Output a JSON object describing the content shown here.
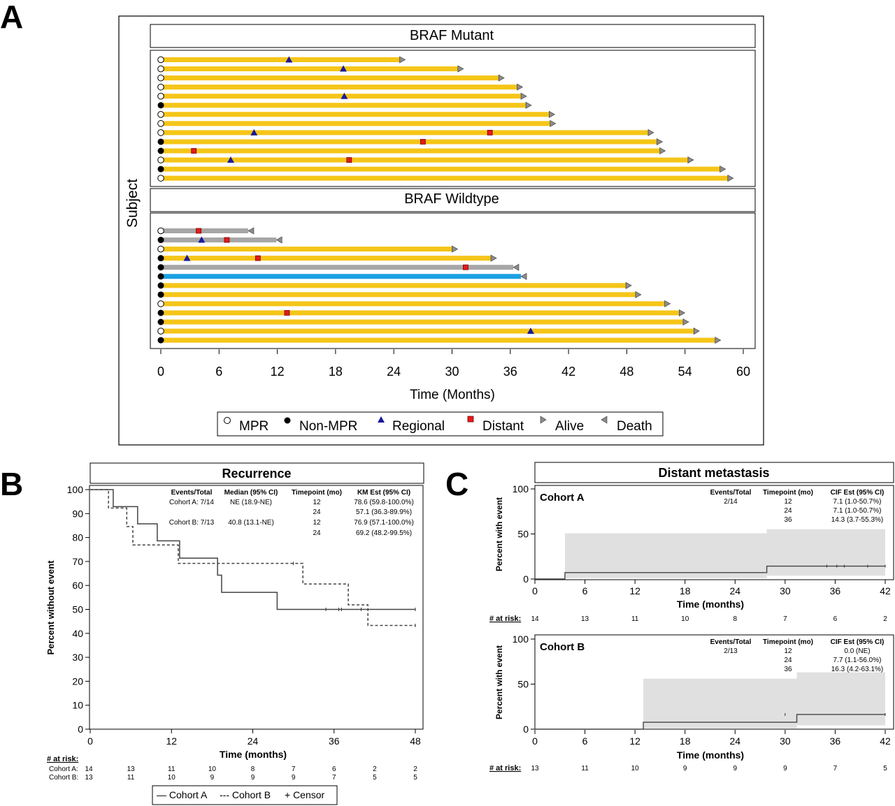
{
  "figure": {
    "panel_letters": [
      "A",
      "B",
      "C"
    ]
  },
  "colors": {
    "bar_yellow": "#f5c518",
    "bar_gray": "#a6a6a6",
    "bar_blue": "#1ba1e2",
    "regional_blue": "#1a1a9a",
    "distant_red": "#e41a1c",
    "arrow_gray": "#8c8c8c",
    "ci_band": "#e0e0e0",
    "line": "#444444"
  },
  "chart_data": [
    {
      "type": "swimmer",
      "id": "A",
      "ylabel": "Subject",
      "xlabel": "Time (Months)",
      "xticks": [
        0,
        6,
        12,
        18,
        24,
        30,
        36,
        42,
        48,
        54,
        60
      ],
      "xlim": [
        0,
        60
      ],
      "legend": [
        "MPR",
        "Non-MPR",
        "Regional",
        "Distant",
        "Alive",
        "Death"
      ],
      "panels": [
        {
          "title": "BRAF Mutant",
          "subjects": [
            {
              "mpr": true,
              "end": 24.6,
              "status": "alive",
              "color": "yellow",
              "regional": [
                13.2
              ],
              "distant": []
            },
            {
              "mpr": true,
              "end": 30.6,
              "status": "alive",
              "color": "yellow",
              "regional": [
                18.8
              ],
              "distant": []
            },
            {
              "mpr": true,
              "end": 34.8,
              "status": "alive",
              "color": "yellow",
              "regional": [],
              "distant": []
            },
            {
              "mpr": true,
              "end": 36.7,
              "status": "alive",
              "color": "yellow",
              "regional": [],
              "distant": []
            },
            {
              "mpr": true,
              "end": 37.1,
              "status": "alive",
              "color": "yellow",
              "regional": [
                18.9
              ],
              "distant": []
            },
            {
              "mpr": false,
              "end": 37.6,
              "status": "alive",
              "color": "yellow",
              "regional": [],
              "distant": []
            },
            {
              "mpr": true,
              "end": 40.0,
              "status": "alive",
              "color": "yellow",
              "regional": [],
              "distant": []
            },
            {
              "mpr": true,
              "end": 40.1,
              "status": "alive",
              "color": "yellow",
              "regional": [],
              "distant": []
            },
            {
              "mpr": true,
              "end": 50.2,
              "status": "alive",
              "color": "yellow",
              "regional": [
                9.6
              ],
              "distant": [
                33.9
              ]
            },
            {
              "mpr": false,
              "end": 51.1,
              "status": "alive",
              "color": "yellow",
              "regional": [],
              "distant": [
                27.0
              ]
            },
            {
              "mpr": false,
              "end": 51.4,
              "status": "alive",
              "color": "yellow",
              "regional": [],
              "distant": [
                3.4
              ]
            },
            {
              "mpr": true,
              "end": 54.3,
              "status": "alive",
              "color": "yellow",
              "regional": [
                7.2
              ],
              "distant": [
                19.4
              ]
            },
            {
              "mpr": false,
              "end": 57.6,
              "status": "alive",
              "color": "yellow",
              "regional": [],
              "distant": []
            },
            {
              "mpr": true,
              "end": 58.4,
              "status": "alive",
              "color": "yellow",
              "regional": [],
              "distant": []
            }
          ]
        },
        {
          "title": "BRAF Wildtype",
          "subjects": [
            {
              "mpr": true,
              "end": 9.0,
              "status": "death",
              "color": "gray",
              "regional": [],
              "distant": [
                3.9
              ]
            },
            {
              "mpr": false,
              "end": 11.9,
              "status": "death",
              "color": "gray",
              "regional": [
                4.2
              ],
              "distant": [
                6.8
              ]
            },
            {
              "mpr": true,
              "end": 30.0,
              "status": "alive",
              "color": "yellow",
              "regional": [],
              "distant": []
            },
            {
              "mpr": false,
              "end": 34.0,
              "status": "alive",
              "color": "yellow",
              "regional": [
                2.7
              ],
              "distant": [
                10.0
              ]
            },
            {
              "mpr": false,
              "end": 36.3,
              "status": "death",
              "color": "gray",
              "regional": [],
              "distant": [
                31.4
              ]
            },
            {
              "mpr": false,
              "end": 37.1,
              "status": "death",
              "color": "blue",
              "regional": [],
              "distant": []
            },
            {
              "mpr": false,
              "end": 47.9,
              "status": "alive",
              "color": "yellow",
              "regional": [],
              "distant": []
            },
            {
              "mpr": false,
              "end": 48.9,
              "status": "alive",
              "color": "yellow",
              "regional": [],
              "distant": []
            },
            {
              "mpr": true,
              "end": 51.9,
              "status": "alive",
              "color": "yellow",
              "regional": [],
              "distant": []
            },
            {
              "mpr": false,
              "end": 53.4,
              "status": "alive",
              "color": "yellow",
              "regional": [],
              "distant": [
                13.0
              ]
            },
            {
              "mpr": false,
              "end": 53.8,
              "status": "alive",
              "color": "yellow",
              "regional": [],
              "distant": []
            },
            {
              "mpr": true,
              "end": 54.9,
              "status": "alive",
              "color": "yellow",
              "regional": [
                38.1
              ],
              "distant": []
            },
            {
              "mpr": false,
              "end": 57.1,
              "status": "alive",
              "color": "yellow",
              "regional": [],
              "distant": []
            }
          ]
        }
      ]
    },
    {
      "type": "line",
      "subtype": "kaplan-meier",
      "id": "B",
      "title": "Recurrence",
      "ylabel": "Percent without event",
      "xlabel": "Time (months)",
      "xticks": [
        0,
        12,
        24,
        36,
        48
      ],
      "yticks": [
        0,
        10,
        20,
        30,
        40,
        50,
        60,
        70,
        80,
        90,
        100
      ],
      "xlim": [
        0,
        48
      ],
      "ylim": [
        0,
        100
      ],
      "legend": [
        "— Cohort A",
        "--- Cohort B",
        "+ Censor"
      ],
      "series": [
        {
          "name": "Cohort A",
          "dash": false,
          "steps": [
            [
              0,
              100
            ],
            [
              3.4,
              92.9
            ],
            [
              7.0,
              85.7
            ],
            [
              9.9,
              78.6
            ],
            [
              13.2,
              71.4
            ],
            [
              18.8,
              64.3
            ],
            [
              19.4,
              57.1
            ],
            [
              27.6,
              50.0
            ],
            [
              48,
              50.0
            ]
          ],
          "censor": [
            [
              34.8,
              50.0
            ],
            [
              36.7,
              50.0
            ],
            [
              37.1,
              50.0
            ],
            [
              40.0,
              50.0
            ],
            [
              48,
              50.0
            ]
          ]
        },
        {
          "name": "Cohort B",
          "dash": true,
          "steps": [
            [
              0,
              100
            ],
            [
              2.7,
              92.3
            ],
            [
              5.4,
              84.6
            ],
            [
              6.3,
              76.9
            ],
            [
              13.0,
              69.2
            ],
            [
              31.4,
              60.6
            ],
            [
              38.1,
              51.9
            ],
            [
              41.0,
              43.3
            ],
            [
              48,
              43.3
            ]
          ],
          "censor": [
            [
              30.0,
              69.2
            ],
            [
              48,
              43.3
            ]
          ]
        }
      ],
      "table": {
        "headers": [
          "Events/Total",
          "Median (95% CI)",
          "Timepoint (mo)",
          "KM Est (95% CI)"
        ],
        "rows": [
          [
            "Cohort A: 7/14",
            "NE (18.9-NE)",
            "12",
            "78.6 (59.8-100.0%)"
          ],
          [
            "",
            "",
            "24",
            "57.1 (36.3-89.9%)"
          ],
          [
            "Cohort B: 7/13",
            "40.8 (13.1-NE)",
            "12",
            "76.9 (57.1-100.0%)"
          ],
          [
            "",
            "",
            "24",
            "69.2 (48.2-99.5%)"
          ]
        ]
      },
      "at_risk": {
        "label": "# at risk:",
        "rows": [
          {
            "name": "Cohort A:",
            "values": [
              "14",
              "13",
              "11",
              "10",
              "8",
              "7",
              "6",
              "2",
              "2"
            ]
          },
          {
            "name": "Cohort B:",
            "values": [
              "13",
              "11",
              "10",
              "9",
              "9",
              "9",
              "7",
              "5",
              "5"
            ]
          }
        ]
      }
    },
    {
      "type": "line",
      "subtype": "cumulative-incidence",
      "id": "C",
      "title": "Distant metastasis",
      "ylabel": "Percent with event",
      "xlabel": "Time (months)",
      "xticks": [
        0,
        6,
        12,
        18,
        24,
        30,
        36,
        42
      ],
      "yticks": [
        0,
        50,
        100
      ],
      "xlim": [
        0,
        42
      ],
      "ylim": [
        0,
        100
      ],
      "panels": [
        {
          "name": "Cohort A",
          "steps": [
            [
              0,
              0
            ],
            [
              3.6,
              7.1
            ],
            [
              27.8,
              14.3
            ],
            [
              42,
              14.3
            ]
          ],
          "band": [
            [
              3.6,
              1.0,
              50.7
            ],
            [
              27.8,
              3.7,
              55.3
            ],
            [
              42,
              3.7,
              55.3
            ]
          ],
          "censor": [
            35.0,
            36.2,
            37.1,
            39.9,
            42
          ],
          "table": {
            "headers": [
              "Events/Total",
              "Timepoint (mo)",
              "CIF Est (95% CI)"
            ],
            "rows": [
              [
                "2/14",
                "12",
                "7.1 (1.0-50.7%)"
              ],
              [
                "",
                "24",
                "7.1 (1.0-50.7%)"
              ],
              [
                "",
                "36",
                "14.3 (3.7-55.3%)"
              ]
            ]
          },
          "at_risk": [
            "14",
            "13",
            "11",
            "10",
            "8",
            "7",
            "6",
            "2"
          ]
        },
        {
          "name": "Cohort B",
          "steps": [
            [
              0,
              0
            ],
            [
              13.0,
              7.7
            ],
            [
              31.4,
              16.3
            ],
            [
              42,
              16.3
            ]
          ],
          "band": [
            [
              13.0,
              1.1,
              56.0
            ],
            [
              31.4,
              4.2,
              63.1
            ],
            [
              42,
              4.2,
              63.1
            ]
          ],
          "censor": [
            30.0,
            42
          ],
          "table": {
            "headers": [
              "Events/Total",
              "Timepoint (mo)",
              "CIF Est (95% CI)"
            ],
            "rows": [
              [
                "2/13",
                "12",
                "0.0 (NE)"
              ],
              [
                "",
                "24",
                "7.7 (1.1-56.0%)"
              ],
              [
                "",
                "36",
                "16.3 (4.2-63.1%)"
              ]
            ]
          },
          "at_risk": [
            "13",
            "11",
            "10",
            "9",
            "9",
            "9",
            "7",
            "5"
          ]
        }
      ],
      "at_risk_label": "# at risk:"
    }
  ]
}
